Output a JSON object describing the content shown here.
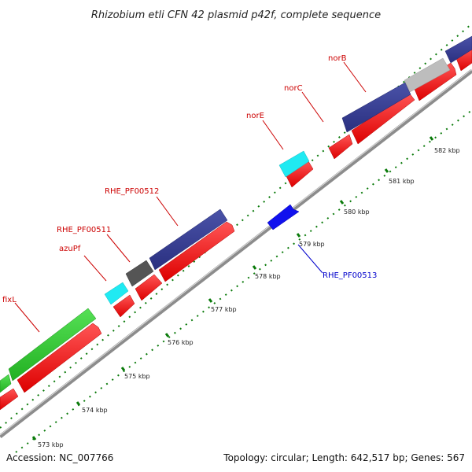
{
  "title": "Rhizobium etli CFN 42 plasmid p42f, complete sequence",
  "footer": {
    "accession": "Accession: NC_007766",
    "summary": "Topology: circular; Length: 642,517 bp; Genes: 567"
  },
  "colors": {
    "backbone": "#8c8c8c",
    "tick_dots": "#0a7a0a",
    "red_label": "#cc0000",
    "blue_label": "#0000cc",
    "cds": "#ee1111",
    "blue_gene": "#333a8e",
    "cyan_gene": "#20eaf2",
    "gray_gene": "#555555",
    "lightgray_gene": "#bdbdbd",
    "green_gene": "#32c832"
  },
  "gene_labels": {
    "fixL": "fixL",
    "azuPf": "azuPf",
    "rhe_pf00511": "RHE_PF00511",
    "rhe_pf00512": "RHE_PF00512",
    "norE": "norE",
    "norC": "norC",
    "norB": "norB",
    "rhe_pf00513": "RHE_PF00513"
  },
  "kbp_ticks": [
    "573 kbp",
    "574 kbp",
    "575 kbp",
    "576 kbp",
    "577 kbp",
    "578 kbp",
    "579 kbp",
    "580 kbp",
    "581 kbp",
    "582 kbp"
  ]
}
